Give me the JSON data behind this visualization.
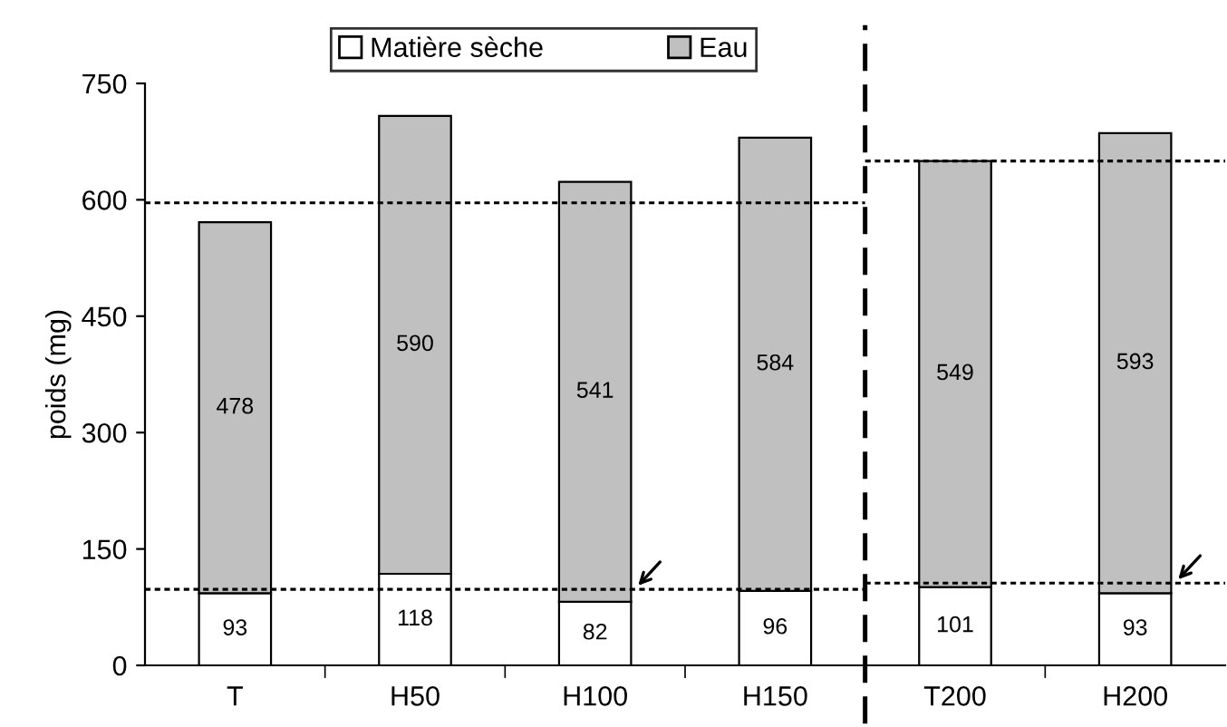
{
  "chart_data": {
    "type": "bar",
    "stacked": true,
    "ylabel": "poids (mg)",
    "categories": [
      "T",
      "H50",
      "H100",
      "H150",
      "T200",
      "H200"
    ],
    "series": [
      {
        "name": "Matière sèche",
        "color": "#ffffff",
        "values": [
          93,
          118,
          82,
          96,
          101,
          93
        ]
      },
      {
        "name": "Eau",
        "color": "#c0c0c0",
        "values": [
          478,
          590,
          541,
          584,
          549,
          593
        ]
      }
    ],
    "ylim": [
      0,
      750
    ],
    "yticks": [
      0,
      150,
      300,
      450,
      600,
      750
    ],
    "data_labels": true,
    "legend": "top",
    "grid": false,
    "ref_lines": [
      {
        "axis": "y",
        "value": 596,
        "line_style": "dotted"
      },
      {
        "axis": "y",
        "value": 98,
        "line_style": "dotted"
      },
      {
        "axis": "y",
        "value": 650,
        "line_style": "dotted"
      },
      {
        "axis": "y",
        "value": 106,
        "line_style": "dotted"
      }
    ]
  }
}
